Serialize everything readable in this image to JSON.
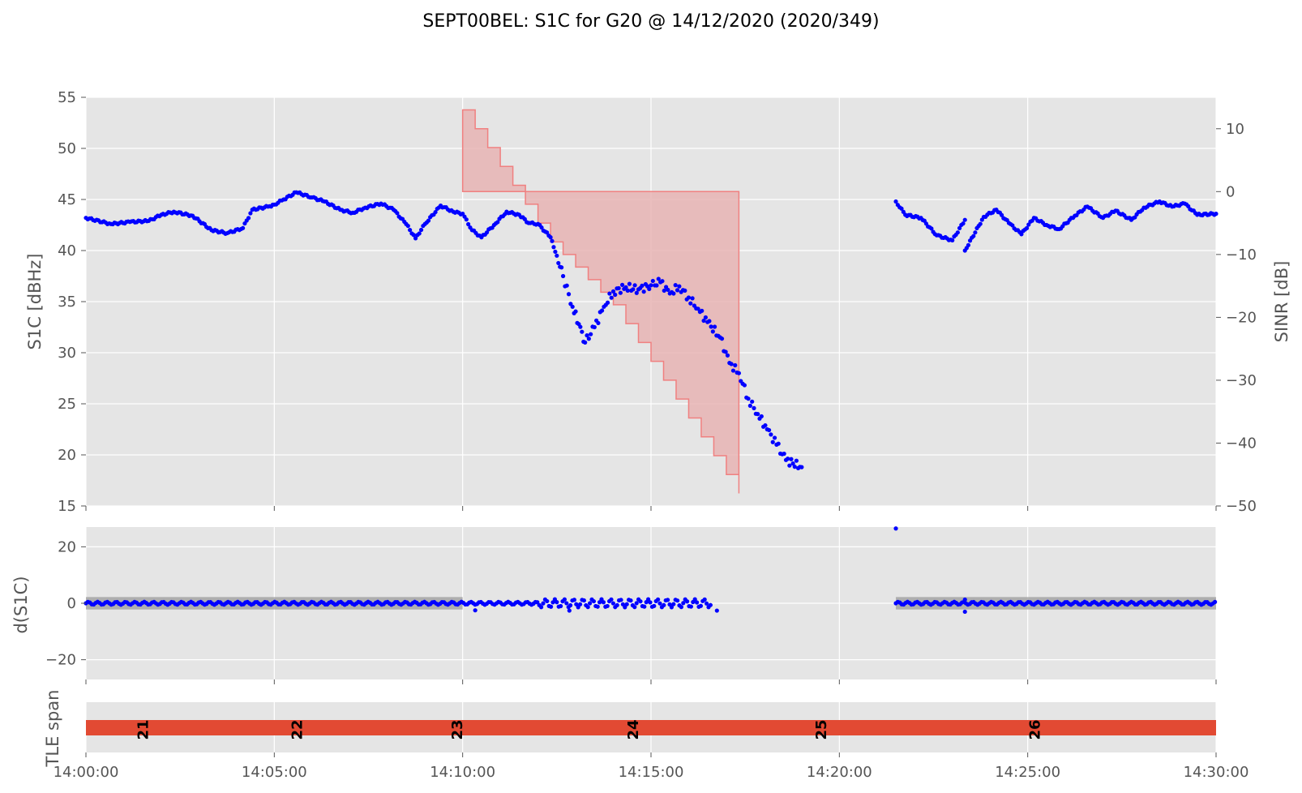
{
  "title": "SEPT00BEL: S1C for G20 @ 14/12/2020 (2020/349)",
  "colors": {
    "panel_bg": "#e5e5e5",
    "grid": "#ffffff",
    "points": "#0000ff",
    "sinr_fill": "#e8b4b4",
    "sinr_edge": "#f08080",
    "tle_bar": "#e24a33",
    "band": "#a0a0a0"
  },
  "chart_data": [
    {
      "type": "scatter",
      "ylabel": "S1C [dBHz]",
      "y2label": "SINR [dB]",
      "ylim": [
        15,
        55
      ],
      "y2lim": [
        -50,
        15
      ],
      "xlim": [
        "14:00:00",
        "14:30:00"
      ],
      "x_ticks": [
        "14:00:00",
        "14:05:00",
        "14:10:00",
        "14:15:00",
        "14:20:00",
        "14:25:00",
        "14:30:00"
      ],
      "y_ticks": [
        "15",
        "20",
        "25",
        "30",
        "35",
        "40",
        "45",
        "50",
        "55"
      ],
      "y2_ticks": [
        "−50",
        "−40",
        "−30",
        "−20",
        "−10",
        "0",
        "10"
      ],
      "grid": true,
      "series": [
        {
          "points": [
            [
              "14:00:00",
              43.2
            ],
            [
              "14:00:40",
              42.6
            ],
            [
              "14:01:10",
              42.8
            ],
            [
              "14:01:40",
              42.9
            ],
            [
              "14:02:00",
              43.5
            ],
            [
              "14:02:20",
              43.8
            ],
            [
              "14:02:50",
              43.4
            ],
            [
              "14:03:20",
              42.0
            ],
            [
              "14:03:45",
              41.7
            ],
            [
              "14:04:10",
              42.2
            ],
            [
              "14:04:25",
              44.0
            ],
            [
              "14:04:50",
              44.3
            ],
            [
              "14:05:00",
              44.5
            ],
            [
              "14:05:15",
              45.0
            ],
            [
              "14:05:35",
              45.7
            ],
            [
              "14:06:00",
              45.2
            ],
            [
              "14:06:20",
              44.8
            ],
            [
              "14:06:45",
              44.0
            ],
            [
              "14:07:05",
              43.7
            ],
            [
              "14:07:25",
              44.2
            ],
            [
              "14:07:50",
              44.6
            ],
            [
              "14:08:10",
              44.0
            ],
            [
              "14:08:30",
              42.6
            ],
            [
              "14:08:45",
              41.2
            ],
            [
              "14:09:00",
              42.6
            ],
            [
              "14:09:25",
              44.4
            ],
            [
              "14:09:45",
              43.8
            ],
            [
              "14:10:00",
              43.6
            ],
            [
              "14:10:15",
              42.0
            ],
            [
              "14:10:30",
              41.3
            ],
            [
              "14:10:50",
              42.5
            ],
            [
              "14:11:10",
              43.8
            ],
            [
              "14:11:30",
              43.5
            ],
            [
              "14:11:45",
              42.7
            ],
            [
              "14:12:00",
              42.6
            ],
            [
              "14:12:20",
              41.3
            ],
            [
              "14:12:30",
              39.5
            ],
            [
              "14:12:40",
              37.5
            ],
            [
              "14:12:55",
              34.5
            ],
            [
              "14:13:05",
              32.8
            ],
            [
              "14:13:15",
              31.0
            ],
            [
              "14:13:30",
              32.5
            ],
            [
              "14:13:45",
              34.5
            ],
            [
              "14:14:00",
              36.0
            ],
            [
              "14:14:20",
              36.4
            ],
            [
              "14:14:40",
              36.2
            ],
            [
              "14:15:00",
              36.6
            ],
            [
              "14:15:15",
              36.9
            ],
            [
              "14:15:30",
              35.8
            ],
            [
              "14:15:45",
              36.5
            ],
            [
              "14:16:00",
              35.4
            ],
            [
              "14:16:15",
              34.3
            ],
            [
              "14:16:30",
              33.0
            ],
            [
              "14:16:50",
              31.5
            ],
            [
              "14:17:05",
              29.0
            ],
            [
              "14:17:20",
              28.0
            ],
            [
              "14:17:35",
              25.5
            ],
            [
              "14:17:50",
              24.0
            ],
            [
              "14:18:05",
              22.5
            ],
            [
              "14:18:20",
              21.0
            ],
            [
              "14:18:35",
              19.5
            ],
            [
              "14:19:00",
              18.8
            ],
            [
              "14:21:30",
              44.8
            ],
            [
              "14:21:45",
              43.5
            ],
            [
              "14:22:10",
              43.2
            ],
            [
              "14:22:35",
              41.5
            ],
            [
              "14:23:00",
              41.0
            ],
            [
              "14:23:20",
              43.0
            ],
            [
              "14:23:20",
              40.0
            ],
            [
              "14:23:50",
              43.3
            ],
            [
              "14:24:10",
              44.0
            ],
            [
              "14:24:30",
              42.7
            ],
            [
              "14:24:50",
              41.6
            ],
            [
              "14:25:10",
              43.2
            ],
            [
              "14:25:30",
              42.5
            ],
            [
              "14:25:50",
              42.1
            ],
            [
              "14:26:15",
              43.4
            ],
            [
              "14:26:35",
              44.3
            ],
            [
              "14:27:00",
              43.2
            ],
            [
              "14:27:20",
              43.9
            ],
            [
              "14:27:45",
              43.0
            ],
            [
              "14:28:05",
              44.2
            ],
            [
              "14:28:30",
              44.8
            ],
            [
              "14:28:50",
              44.3
            ],
            [
              "14:29:10",
              44.6
            ],
            [
              "14:29:30",
              43.5
            ],
            [
              "14:30:00",
              43.6
            ]
          ]
        }
      ],
      "sinr_area": {
        "start": "14:10:00",
        "end": "14:17:20",
        "top_db": 0,
        "lower_boundary": [
          [
            "14:10:00",
            13
          ],
          [
            "14:10:20",
            10
          ],
          [
            "14:10:40",
            7
          ],
          [
            "14:11:00",
            4
          ],
          [
            "14:11:20",
            1
          ],
          [
            "14:11:40",
            -2
          ],
          [
            "14:12:00",
            -5
          ],
          [
            "14:12:20",
            -8
          ],
          [
            "14:12:40",
            -10
          ],
          [
            "14:13:00",
            -12
          ],
          [
            "14:13:20",
            -14
          ],
          [
            "14:13:40",
            -16
          ],
          [
            "14:14:00",
            -18
          ],
          [
            "14:14:20",
            -21
          ],
          [
            "14:14:40",
            -24
          ],
          [
            "14:15:00",
            -27
          ],
          [
            "14:15:20",
            -30
          ],
          [
            "14:15:40",
            -33
          ],
          [
            "14:16:00",
            -36
          ],
          [
            "14:16:20",
            -39
          ],
          [
            "14:16:40",
            -42
          ],
          [
            "14:17:00",
            -45
          ],
          [
            "14:17:20",
            -48
          ]
        ]
      }
    },
    {
      "type": "scatter",
      "ylabel": "d(S1C)",
      "ylim": [
        -27,
        27
      ],
      "y_ticks": [
        "−20",
        "0",
        "20"
      ],
      "xlim": [
        "14:00:00",
        "14:30:00"
      ],
      "band": [
        -2.2,
        2.2
      ],
      "segments": [
        [
          "14:00:00",
          "14:16:35"
        ],
        [
          "14:21:30",
          "14:30:00"
        ]
      ],
      "outliers": [
        [
          "14:21:30",
          26.5
        ],
        [
          "14:16:45",
          -2.6
        ],
        [
          "14:10:20",
          -2.5
        ],
        [
          "14:12:50",
          -2.6
        ],
        [
          "14:23:20",
          -3.0
        ],
        [
          "14:23:20",
          1.3
        ]
      ]
    },
    {
      "type": "bar",
      "ylabel": "TLE span",
      "xlim": [
        "14:00:00",
        "14:30:00"
      ],
      "tle_labels": [
        {
          "label": "21",
          "time": "14:01:30"
        },
        {
          "label": "22",
          "time": "14:05:35"
        },
        {
          "label": "23",
          "time": "14:09:50"
        },
        {
          "label": "24",
          "time": "14:14:30"
        },
        {
          "label": "25",
          "time": "14:19:30"
        },
        {
          "label": "26",
          "time": "14:25:10"
        }
      ]
    }
  ]
}
